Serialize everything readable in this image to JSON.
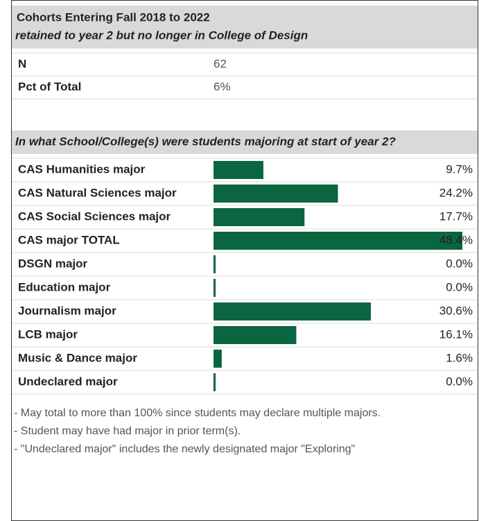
{
  "header": {
    "title": "Cohorts Entering Fall 2018 to 2022",
    "subtitle": "retained to year 2 but no longer in College of Design"
  },
  "summary": {
    "rows": [
      [
        "N",
        "62"
      ],
      [
        "Pct of Total",
        "6%"
      ]
    ]
  },
  "chart_data": {
    "type": "bar",
    "title": "In what School/College(s) were students majoring at start of year 2?",
    "categories": [
      "CAS Humanities major",
      "CAS Natural Sciences major",
      "CAS Social Sciences major",
      "CAS major TOTAL",
      "DSGN major",
      "Education major",
      "Journalism major",
      "LCB major",
      "Music & Dance major",
      "Undeclared major"
    ],
    "values": [
      9.7,
      24.2,
      17.7,
      48.4,
      0.0,
      0.0,
      30.6,
      16.1,
      1.6,
      0.0
    ],
    "value_labels": [
      "9.7%",
      "24.2%",
      "17.7%",
      "48.4%",
      "0.0%",
      "0.0%",
      "30.6%",
      "16.1%",
      "1.6%",
      "0.0%"
    ],
    "color": "#0a6640",
    "xlim": [
      0,
      48.4
    ]
  },
  "notes": [
    "- May total to more than 100% since students may declare multiple majors.",
    "- Student may have had major in prior term(s).",
    "- \"Undeclared major\" includes the newly designated major \"Exploring\""
  ]
}
